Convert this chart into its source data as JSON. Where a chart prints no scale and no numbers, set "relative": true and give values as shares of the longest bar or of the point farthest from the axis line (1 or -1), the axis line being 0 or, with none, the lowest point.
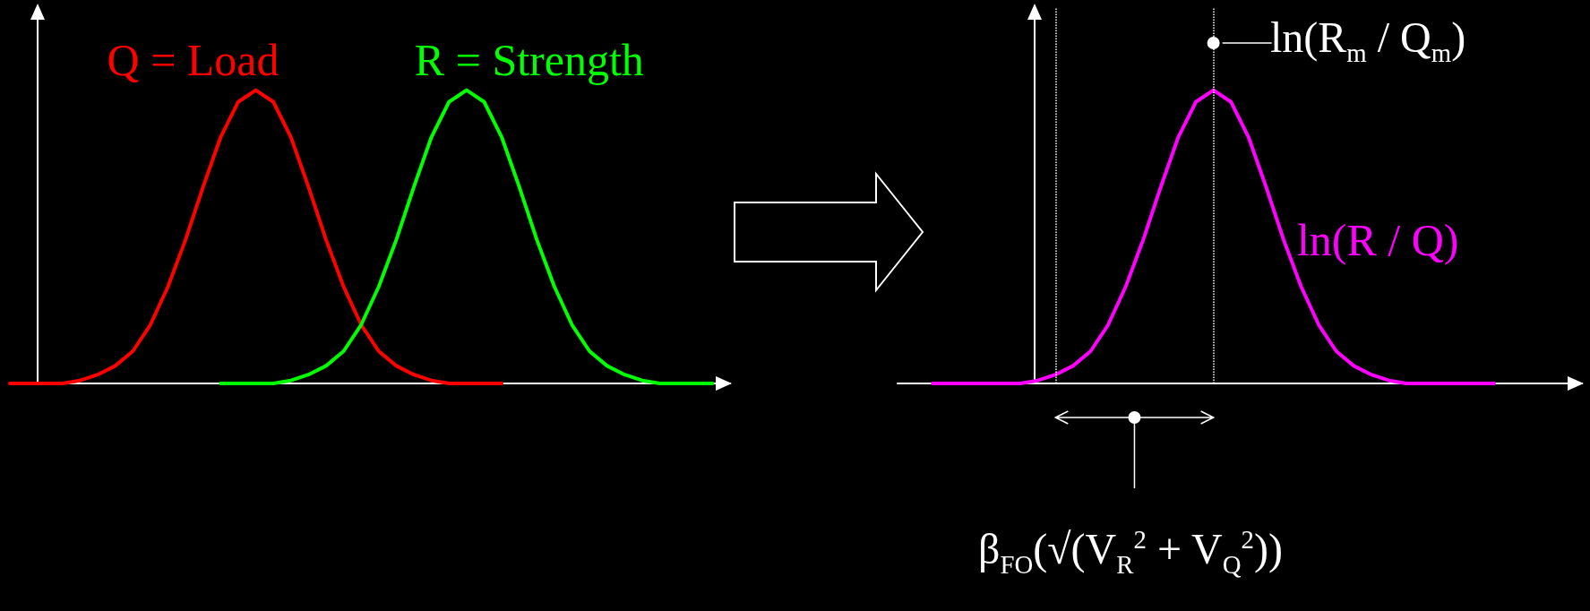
{
  "chart_data": [
    {
      "type": "line",
      "relative": true,
      "marker": "none",
      "line_style": "solid",
      "grid": false,
      "legend": false,
      "categories": [
        null,
        null,
        null,
        null,
        null,
        null,
        null,
        null,
        null,
        null,
        null,
        null,
        null,
        null,
        null,
        null,
        null,
        null,
        null,
        null,
        null,
        null,
        null,
        null,
        null,
        null,
        null,
        null,
        null,
        null,
        null,
        null,
        null,
        null,
        null,
        null,
        null,
        null,
        null,
        null,
        null,
        null
      ],
      "series": [
        {
          "name": "Q = Load",
          "color": "#ff0000",
          "values": [
            0,
            0,
            0,
            0,
            0.01,
            0.03,
            0.06,
            0.11,
            0.2,
            0.33,
            0.49,
            0.67,
            0.84,
            0.96,
            1,
            0.96,
            0.84,
            0.67,
            0.49,
            0.33,
            0.2,
            0.11,
            0.06,
            0.03,
            0.01,
            0,
            0,
            0,
            0,
            null,
            null,
            null,
            null,
            null,
            null,
            null,
            null,
            null,
            null,
            null,
            null,
            null
          ]
        },
        {
          "name": "R = Strength",
          "color": "#00ff00",
          "values": [
            null,
            null,
            null,
            null,
            null,
            null,
            null,
            null,
            null,
            null,
            null,
            null,
            0,
            0,
            0,
            0,
            0.01,
            0.03,
            0.06,
            0.11,
            0.2,
            0.33,
            0.49,
            0.67,
            0.84,
            0.96,
            1,
            0.96,
            0.84,
            0.67,
            0.49,
            0.33,
            0.2,
            0.11,
            0.06,
            0.03,
            0.01,
            0,
            0,
            0,
            0,
            null
          ]
        }
      ]
    },
    {
      "type": "line",
      "relative": true,
      "marker": "none",
      "line_style": "solid",
      "grid": false,
      "legend": false,
      "categories": [
        null,
        null,
        null,
        null,
        null,
        null,
        null,
        null,
        null,
        null,
        null,
        null,
        null,
        null,
        null,
        null,
        null,
        null,
        null,
        null,
        null,
        null,
        null,
        null,
        null,
        null,
        null,
        null,
        null,
        null,
        null,
        null,
        null,
        null,
        null,
        null,
        null,
        null,
        null,
        null
      ],
      "series": [
        {
          "name": "ln(R / Q)",
          "color": "#ff00ff",
          "values": [
            null,
            null,
            0,
            0,
            0,
            0,
            0,
            0,
            0.01,
            0.03,
            0.06,
            0.11,
            0.2,
            0.33,
            0.49,
            0.67,
            0.84,
            0.96,
            1,
            0.96,
            0.84,
            0.67,
            0.49,
            0.33,
            0.2,
            0.11,
            0.06,
            0.03,
            0.01,
            0,
            0,
            0,
            0,
            0,
            0,
            null,
            null,
            null,
            null,
            null
          ]
        }
      ],
      "annotations": [
        "ln(R$_{m}$ / Q$_{m}$)",
        "β$_{FO}$(√(V$_{R}$$^{2}$ + V$_{Q}$$^{2}$))"
      ]
    }
  ]
}
